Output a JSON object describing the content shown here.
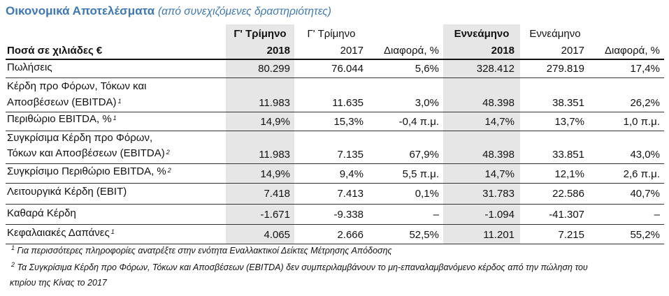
{
  "title": {
    "main": "Οικονομικά Αποτελέσματα",
    "sub": "(από συνεχιζόμενες δραστηριότητες)"
  },
  "header": {
    "row_label": "Ποσά σε χιλιάδες €",
    "q3_2018_line1": "Γ' Τρίμηνο",
    "q3_2018_line2": "2018",
    "q3_2017_line1": "Γ' Τρίμηνο",
    "q3_2017_line2": "2017",
    "q_diff": "Διαφορά, %",
    "m9_2018_line1": "Εννεάμηνο",
    "m9_2018_line2": "2018",
    "m9_2017_line1": "Εννεάμηνο",
    "m9_2017_line2": "2017",
    "m9_diff": "Διαφορά, %"
  },
  "rows": [
    {
      "label1": "Πωλήσεις",
      "label2": "",
      "sup": "",
      "q18": "80.299",
      "q17": "76.044",
      "qd": "5,6%",
      "m18": "328.412",
      "m17": "279.819",
      "md": "17,4%"
    },
    {
      "label1": "Κέρδη προ Φόρων, Τόκων και",
      "label2": "Αποσβέσεων (EBITDA)",
      "sup": "1",
      "q18": "11.983",
      "q17": "11.635",
      "qd": "3,0%",
      "m18": "48.398",
      "m17": "38.351",
      "md": "26,2%"
    },
    {
      "label1": "Περιθώριο EBITDA, %",
      "label2": "",
      "sup": "1",
      "q18": "14,9%",
      "q17": "15,3%",
      "qd": "-0,4 π.μ.",
      "m18": "14,7%",
      "m17": "13,7%",
      "md": "1,0 π.μ."
    },
    {
      "label1": "Συγκρίσιμα Κέρδη προ Φόρων,",
      "label2": "Τόκων και Αποσβέσεων (EBITDA)",
      "sup": "2",
      "q18": "11.983",
      "q17": "7.135",
      "qd": "67,9%",
      "m18": "48.398",
      "m17": "33.851",
      "md": "43,0%"
    },
    {
      "label1": "Συγκρίσιμο Περιθώριο EBITDA, %",
      "label2": "",
      "sup": "2",
      "q18": "14,9%",
      "q17": "9,4%",
      "qd": "5,5 π.μ.",
      "m18": "14,7%",
      "m17": "12,1%",
      "md": "2,6 π.μ."
    },
    {
      "label1": "Λειτουργικά Κέρδη (EBIT)",
      "label2": "",
      "sup": "",
      "q18": "7.418",
      "q17": "7.413",
      "qd": "0,1%",
      "m18": "31.783",
      "m17": "22.586",
      "md": "40,7%"
    },
    {
      "label1": "Καθαρά Κέρδη",
      "label2": "",
      "sup": "",
      "q18": "-1.671",
      "q17": "-9.338",
      "qd": "–",
      "m18": "-1.094",
      "m17": "-41.307",
      "md": "–"
    },
    {
      "label1": "Κεφαλαιακές Δαπάνες",
      "label2": "",
      "sup": "1",
      "q18": "4.065",
      "q17": "2.666",
      "qd": "52,5%",
      "m18": "11.201",
      "m17": "7.215",
      "md": "55,2%"
    }
  ],
  "footnotes": {
    "f1_mark": "1",
    "f1": "Για περισσότερες πληροφορίες ανατρέξτε στην ενότητα Εναλλακτικοί Δείκτες Μέτρησης Απόδοσης",
    "f2_mark": "2",
    "f2_line1": "Τα Συγκρίσιμα Κέρδη προ Φόρων, Τόκων και Αποσβέσεων (EBITDA) δεν συμπεριλαμβάνουν το μη-επαναλαμβανόμενο κέρδος από την πώληση του",
    "f2_line2": "κτιρίου της Κίνας το 2017"
  }
}
